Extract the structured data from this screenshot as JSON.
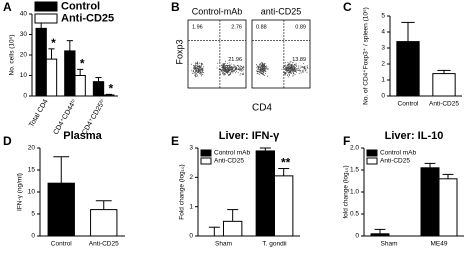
{
  "chart_data": [
    {
      "type": "bar",
      "panel": "A",
      "ylabel": "No. cells (10⁵)",
      "categories": [
        "Total CD4",
        "CD4⁺CD44ʰⁱ",
        "CD4⁺CD25ʰⁱ"
      ],
      "series": [
        {
          "name": "Control",
          "color": "#000000",
          "values": [
            33,
            22,
            7
          ],
          "errors": [
            7,
            5,
            2
          ]
        },
        {
          "name": "Anti-CD25",
          "color": "#ffffff",
          "values": [
            18,
            10,
            0.5
          ],
          "errors": [
            5,
            3,
            0.3
          ],
          "significance": [
            "*",
            "*",
            "*"
          ]
        }
      ],
      "ylim": [
        0,
        40
      ],
      "yticks": [
        0,
        10,
        20,
        30,
        40
      ],
      "legend": "upper left",
      "rotate_labels": true
    },
    {
      "type": "dotplot",
      "panel": "B",
      "xlabel": "CD4",
      "ylabel": "Foxp3",
      "plots": [
        {
          "title": "Control-mAb",
          "quadrants": [
            1.96,
            2.76,
            21.96
          ]
        },
        {
          "title": "anti-CD25",
          "quadrants": [
            0.88,
            0.89,
            13.89
          ]
        }
      ]
    },
    {
      "type": "bar",
      "panel": "C",
      "ylabel": "No. of CD4⁺Foxp3⁺ / spleen (10⁵)",
      "categories": [
        "Control",
        "Anti-CD25"
      ],
      "values": [
        3.4,
        1.4
      ],
      "errors": [
        1.2,
        0.2
      ],
      "colors": [
        "#000000",
        "#ffffff"
      ],
      "ylim": [
        0,
        5
      ],
      "yticks": [
        0,
        1,
        2,
        3,
        4,
        5
      ]
    },
    {
      "type": "bar",
      "panel": "D",
      "title": "Plasma",
      "ylabel": "IFN-γ (ng/ml)",
      "categories": [
        "Control",
        "Anti-CD25"
      ],
      "values": [
        12,
        6
      ],
      "errors": [
        6,
        2
      ],
      "colors": [
        "#000000",
        "#ffffff"
      ],
      "ylim": [
        0,
        20
      ],
      "yticks": [
        0,
        5,
        10,
        15,
        20
      ]
    },
    {
      "type": "bar",
      "panel": "E",
      "title": "Liver: IFN-γ",
      "ylabel": "Fold change (log₁₀)",
      "categories": [
        "Sham",
        "T. gondii"
      ],
      "series": [
        {
          "name": "Control mAb",
          "color": "#000000",
          "values": [
            0,
            2.9
          ],
          "errors": [
            0.3,
            0.1
          ]
        },
        {
          "name": "Anti-CD25",
          "color": "#ffffff",
          "values": [
            0.5,
            2.05
          ],
          "errors": [
            0.4,
            0.25
          ],
          "significance": [
            null,
            "**"
          ]
        }
      ],
      "ylim": [
        0,
        3
      ],
      "yticks": [
        0,
        1,
        2,
        3
      ],
      "legend": "upper left"
    },
    {
      "type": "bar",
      "panel": "F",
      "title": "Liver: IL-10",
      "ylabel": "fold change (log₁₀)",
      "categories": [
        "Sham",
        "ME49"
      ],
      "series": [
        {
          "name": "Control mAb",
          "color": "#000000",
          "values": [
            0.05,
            1.55
          ],
          "errors": [
            0.1,
            0.1
          ]
        },
        {
          "name": "Anti-CD25",
          "color": "#ffffff",
          "values": [
            0,
            1.3
          ],
          "errors": [
            0,
            0.1
          ]
        }
      ],
      "ylim": [
        0,
        2
      ],
      "yticks": [
        0,
        0.5,
        {
          "value": 1,
          "label": "1.0"
        },
        1.5,
        {
          "value": 2,
          "label": "2.0"
        }
      ],
      "legend": "upper left"
    }
  ]
}
